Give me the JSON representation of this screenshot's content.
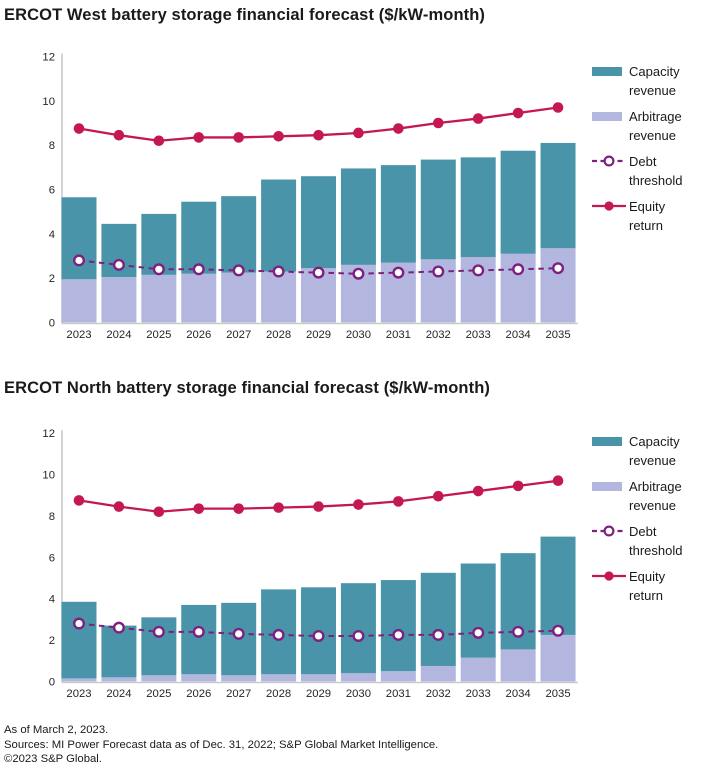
{
  "page": {
    "background": "#FFFFFF"
  },
  "colors": {
    "capacity_teal": "#4994A9",
    "arbitrage_lavender": "#B3B7DF",
    "debt_purple": "#7C2180",
    "equity_crimson": "#C41852",
    "axis_gray": "#C9C9C9",
    "text_dark": "#1A1A1A"
  },
  "legend": {
    "position": "right",
    "items": [
      {
        "label": "Capacity revenue",
        "kind": "bar-swatch",
        "color": "#4994A9"
      },
      {
        "label": "Arbitrage revenue",
        "kind": "bar-swatch",
        "color": "#B3B7DF"
      },
      {
        "label": "Debt threshold",
        "kind": "dashed-line-open-marker",
        "color": "#7C2180"
      },
      {
        "label": "Equity return",
        "kind": "solid-line-filled-marker",
        "color": "#C41852"
      }
    ]
  },
  "chart_data": [
    {
      "type": "bar",
      "subtype": "stacked-bars-with-line-overlays",
      "title": "ERCOT West battery storage financial forecast ($/kW-month)",
      "categories": [
        "2023",
        "2024",
        "2025",
        "2026",
        "2027",
        "2028",
        "2029",
        "2030",
        "2031",
        "2032",
        "2033",
        "2034",
        "2035"
      ],
      "series": [
        {
          "name": "Arbitrage revenue",
          "kind": "stacked-bar",
          "stack_order": 1,
          "color": "#B3B7DF",
          "values": [
            1.95,
            2.05,
            2.15,
            2.2,
            2.25,
            2.3,
            2.45,
            2.6,
            2.7,
            2.85,
            2.95,
            3.1,
            3.35
          ]
        },
        {
          "name": "Capacity revenue",
          "kind": "stacked-bar",
          "stack_order": 2,
          "color": "#4994A9",
          "values": [
            3.7,
            2.4,
            2.75,
            3.25,
            3.45,
            4.15,
            4.15,
            4.35,
            4.4,
            4.5,
            4.5,
            4.65,
            4.75
          ]
        },
        {
          "name": "Debt threshold",
          "kind": "dashed-line-open-markers",
          "color": "#7C2180",
          "values": [
            2.8,
            2.6,
            2.4,
            2.4,
            2.35,
            2.3,
            2.25,
            2.2,
            2.25,
            2.3,
            2.35,
            2.4,
            2.45
          ]
        },
        {
          "name": "Equity return",
          "kind": "solid-line-filled-markers",
          "color": "#C41852",
          "values": [
            8.75,
            8.45,
            8.2,
            8.35,
            8.35,
            8.4,
            8.45,
            8.55,
            8.75,
            9.0,
            9.2,
            9.45,
            9.7
          ]
        }
      ],
      "ylim": [
        0,
        12
      ],
      "yticks": [
        0,
        2,
        4,
        6,
        8,
        10,
        12
      ],
      "grid": false,
      "legend_position": "right"
    },
    {
      "type": "bar",
      "subtype": "stacked-bars-with-line-overlays",
      "title": "ERCOT North battery storage financial forecast ($/kW-month)",
      "categories": [
        "2023",
        "2024",
        "2025",
        "2026",
        "2027",
        "2028",
        "2029",
        "2030",
        "2031",
        "2032",
        "2033",
        "2034",
        "2035"
      ],
      "series": [
        {
          "name": "Arbitrage revenue",
          "kind": "stacked-bar",
          "stack_order": 1,
          "color": "#B3B7DF",
          "values": [
            0.15,
            0.2,
            0.3,
            0.35,
            0.3,
            0.35,
            0.35,
            0.4,
            0.5,
            0.75,
            1.15,
            1.55,
            2.25
          ]
        },
        {
          "name": "Capacity revenue",
          "kind": "stacked-bar",
          "stack_order": 2,
          "color": "#4994A9",
          "values": [
            3.7,
            2.5,
            2.8,
            3.35,
            3.5,
            4.1,
            4.2,
            4.35,
            4.4,
            4.5,
            4.55,
            4.65,
            4.75
          ]
        },
        {
          "name": "Debt threshold",
          "kind": "dashed-line-open-markers",
          "color": "#7C2180",
          "values": [
            2.8,
            2.6,
            2.4,
            2.4,
            2.3,
            2.25,
            2.2,
            2.2,
            2.25,
            2.25,
            2.35,
            2.4,
            2.45
          ]
        },
        {
          "name": "Equity return",
          "kind": "solid-line-filled-markers",
          "color": "#C41852",
          "values": [
            8.75,
            8.45,
            8.2,
            8.35,
            8.35,
            8.4,
            8.45,
            8.55,
            8.7,
            8.95,
            9.2,
            9.45,
            9.7
          ]
        }
      ],
      "ylim": [
        0,
        12
      ],
      "yticks": [
        0,
        2,
        4,
        6,
        8,
        10,
        12
      ],
      "grid": false,
      "legend_position": "right"
    }
  ],
  "footer": {
    "as_of": "As of March 2, 2023.",
    "sources": "Sources: MI Power Forecast data as of Dec. 31, 2022; S&P Global Market Intelligence.",
    "copyright": "©2023 S&P Global."
  }
}
